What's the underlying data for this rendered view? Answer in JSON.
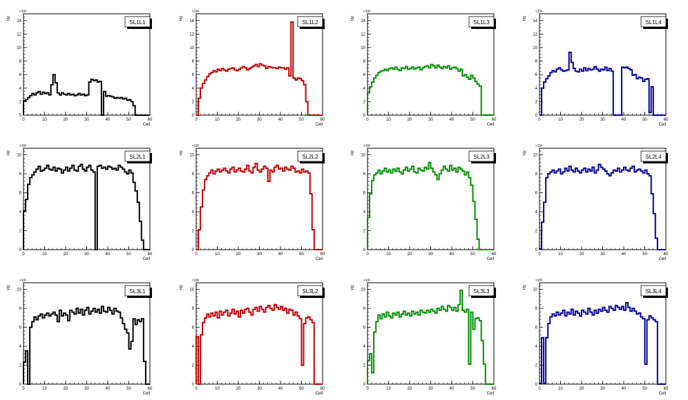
{
  "chart_data": [
    {
      "type": "histogram",
      "title": "SL1L1",
      "xlabel": "Cell",
      "ylabel": "Hz",
      "exponent": "×10²",
      "xlim": [
        0,
        60
      ],
      "ylim": [
        0,
        15
      ],
      "yticks": [
        0,
        2,
        4,
        6,
        8,
        10,
        12,
        14
      ],
      "xticks": [
        0,
        10,
        20,
        30,
        40,
        50,
        60
      ],
      "color": "#000000",
      "values": [
        2.1,
        2.3,
        2.6,
        2.9,
        3.2,
        3.0,
        3.3,
        3.5,
        3.1,
        3.4,
        3.2,
        3.3,
        3.0,
        4.5,
        6.0,
        4.8,
        3.3,
        3.0,
        3.3,
        3.1,
        3.0,
        3.2,
        3.0,
        3.1,
        2.9,
        3.0,
        3.2,
        3.0,
        3.1,
        2.9,
        3.0,
        4.9,
        5.3,
        5.1,
        5.2,
        4.9,
        5.0,
        0.0,
        3.5,
        2.8,
        2.9,
        2.8,
        2.7,
        2.5,
        2.6,
        2.5,
        2.6,
        2.4,
        2.5,
        2.2,
        2.3,
        2.0,
        1.4,
        0.0,
        0.0,
        0.0,
        0.0,
        0.0,
        0.0,
        0.0
      ]
    },
    {
      "type": "histogram",
      "title": "SL1L2",
      "xlabel": "Cell",
      "ylabel": "Hz",
      "exponent": "×10²",
      "xlim": [
        0,
        60
      ],
      "ylim": [
        0,
        15
      ],
      "yticks": [
        0,
        2,
        4,
        6,
        8,
        10,
        12,
        14
      ],
      "xticks": [
        0,
        10,
        20,
        30,
        40,
        50,
        60
      ],
      "color": "#c00000",
      "values": [
        0.0,
        2.5,
        4.0,
        4.7,
        5.2,
        5.7,
        6.1,
        6.3,
        6.6,
        6.4,
        6.8,
        6.6,
        6.9,
        6.7,
        6.5,
        6.8,
        6.9,
        7.0,
        6.7,
        6.6,
        6.8,
        7.0,
        7.2,
        7.0,
        6.7,
        6.9,
        7.1,
        7.3,
        7.5,
        7.2,
        7.6,
        7.4,
        7.3,
        6.9,
        7.2,
        7.1,
        7.0,
        7.0,
        6.9,
        7.1,
        7.0,
        7.0,
        6.8,
        7.0,
        5.8,
        13.8,
        5.5,
        5.2,
        5.5,
        5.4,
        5.1,
        4.5,
        2.0,
        0.0,
        0.0,
        0.0,
        0.0,
        0.0,
        0.0,
        0.0
      ]
    },
    {
      "type": "histogram",
      "title": "SL1L3",
      "xlabel": "Cell",
      "ylabel": "Hz",
      "exponent": "×10²",
      "xlim": [
        0,
        60
      ],
      "ylim": [
        0,
        15
      ],
      "yticks": [
        0,
        2,
        4,
        6,
        8,
        10,
        12,
        14
      ],
      "xticks": [
        0,
        10,
        20,
        30,
        40,
        50,
        60
      ],
      "color": "#009000",
      "values": [
        3.3,
        4.2,
        4.9,
        5.5,
        5.9,
        6.3,
        6.5,
        6.6,
        6.8,
        6.6,
        6.9,
        7.0,
        6.8,
        7.1,
        6.8,
        6.6,
        7.0,
        6.9,
        7.2,
        6.8,
        6.9,
        7.1,
        6.8,
        7.0,
        7.1,
        6.7,
        7.0,
        7.2,
        7.3,
        7.0,
        7.5,
        7.3,
        7.0,
        7.4,
        7.1,
        6.9,
        7.2,
        7.0,
        7.3,
        6.8,
        7.0,
        7.1,
        6.9,
        6.5,
        6.8,
        5.8,
        6.0,
        5.6,
        5.3,
        5.9,
        5.5,
        5.0,
        4.6,
        4.3,
        0.0,
        0.0,
        0.0,
        0.0,
        0.0,
        0.0
      ]
    },
    {
      "type": "histogram",
      "title": "SL1L4",
      "xlabel": "Cell",
      "ylabel": "Hz",
      "exponent": "×10²",
      "xlim": [
        0,
        60
      ],
      "ylim": [
        0,
        15
      ],
      "yticks": [
        0,
        2,
        4,
        6,
        8,
        10,
        12,
        14
      ],
      "xticks": [
        0,
        10,
        20,
        30,
        40,
        50,
        60
      ],
      "color": "#00009a",
      "values": [
        0.0,
        4.0,
        4.9,
        5.4,
        5.8,
        6.3,
        6.6,
        6.4,
        6.8,
        7.0,
        6.7,
        6.5,
        6.6,
        6.7,
        9.3,
        7.8,
        6.9,
        6.5,
        6.4,
        6.8,
        6.5,
        7.0,
        6.6,
        6.9,
        6.7,
        6.8,
        7.2,
        6.8,
        6.5,
        6.8,
        6.7,
        7.1,
        6.6,
        6.9,
        6.5,
        0.0,
        0.0,
        0.0,
        0.0,
        7.1,
        7.0,
        7.1,
        6.9,
        6.7,
        5.9,
        6.0,
        5.4,
        5.6,
        5.5,
        5.0,
        5.3,
        5.4,
        0.4,
        4.2,
        0.0,
        0.0,
        0.0,
        0.0,
        0.0,
        0.0
      ]
    },
    {
      "type": "histogram",
      "title": "SL2L1",
      "xlabel": "Cell",
      "ylabel": "Hz",
      "exponent": "×10²",
      "xlim": [
        0,
        60
      ],
      "ylim": [
        0,
        10.7
      ],
      "yticks": [
        0,
        2,
        4,
        6,
        8,
        10
      ],
      "xticks": [
        0,
        10,
        20,
        30,
        40,
        50,
        60
      ],
      "color": "#000000",
      "values": [
        4.1,
        5.3,
        6.9,
        7.6,
        7.9,
        8.2,
        8.5,
        8.8,
        8.3,
        8.4,
        8.6,
        8.9,
        8.5,
        8.4,
        8.7,
        8.3,
        8.6,
        8.5,
        8.1,
        8.4,
        8.7,
        8.3,
        8.6,
        8.9,
        8.4,
        8.3,
        8.8,
        9.0,
        8.5,
        8.3,
        8.7,
        8.9,
        8.4,
        8.2,
        0.0,
        8.8,
        8.9,
        8.6,
        8.7,
        8.5,
        8.8,
        8.7,
        8.5,
        8.6,
        8.4,
        8.9,
        8.7,
        8.5,
        8.2,
        8.0,
        8.4,
        8.1,
        7.1,
        6.2,
        5.0,
        3.0,
        1.0,
        0.0,
        0.0,
        0.0
      ]
    },
    {
      "type": "histogram",
      "title": "SL2L2",
      "xlabel": "Cell",
      "ylabel": "Hz",
      "exponent": "×10²",
      "xlim": [
        0,
        60
      ],
      "ylim": [
        0,
        10.7
      ],
      "yticks": [
        0,
        2,
        4,
        6,
        8,
        10
      ],
      "xticks": [
        0,
        10,
        20,
        30,
        40,
        50,
        60
      ],
      "color": "#c00000",
      "values": [
        0.0,
        2.1,
        4.5,
        6.3,
        7.4,
        7.8,
        8.1,
        8.4,
        8.0,
        8.3,
        8.5,
        8.2,
        8.4,
        8.6,
        8.3,
        8.1,
        8.5,
        8.7,
        8.2,
        8.4,
        8.6,
        8.3,
        8.2,
        8.5,
        8.9,
        8.3,
        8.1,
        8.7,
        9.1,
        8.4,
        8.2,
        8.5,
        8.8,
        8.6,
        7.2,
        8.4,
        8.2,
        8.7,
        8.9,
        8.5,
        8.6,
        8.3,
        8.7,
        8.5,
        8.4,
        8.8,
        8.6,
        8.2,
        8.3,
        8.1,
        8.5,
        8.2,
        8.3,
        8.1,
        5.9,
        2.1,
        0.0,
        0.0,
        0.0,
        0.0
      ]
    },
    {
      "type": "histogram",
      "title": "SL2L3",
      "xlabel": "Cell",
      "ylabel": "Hz",
      "exponent": "×10²",
      "xlim": [
        0,
        60
      ],
      "ylim": [
        0,
        10.7
      ],
      "yticks": [
        0,
        2,
        4,
        6,
        8,
        10
      ],
      "xticks": [
        0,
        10,
        20,
        30,
        40,
        50,
        60
      ],
      "color": "#009000",
      "values": [
        3.4,
        5.9,
        7.3,
        7.9,
        8.1,
        8.4,
        8.0,
        8.3,
        8.6,
        8.2,
        8.4,
        8.1,
        8.5,
        8.3,
        8.6,
        8.2,
        8.0,
        8.4,
        8.7,
        8.3,
        8.5,
        8.8,
        8.2,
        8.1,
        8.6,
        8.4,
        8.3,
        8.7,
        8.5,
        9.2,
        8.6,
        8.2,
        7.9,
        7.4,
        8.0,
        8.4,
        8.8,
        8.5,
        8.3,
        8.9,
        8.4,
        8.6,
        8.2,
        8.7,
        8.5,
        8.3,
        7.9,
        8.2,
        7.6,
        6.8,
        5.1,
        3.2,
        1.1,
        0.0,
        0.0,
        0.0,
        0.0,
        0.0,
        0.0,
        0.0
      ]
    },
    {
      "type": "histogram",
      "title": "SL2L4",
      "xlabel": "Cell",
      "ylabel": "Hz",
      "exponent": "×10²",
      "xlim": [
        0,
        60
      ],
      "ylim": [
        0,
        10.7
      ],
      "yticks": [
        0,
        2,
        4,
        6,
        8,
        10
      ],
      "xticks": [
        0,
        10,
        20,
        30,
        40,
        50,
        60
      ],
      "color": "#00009a",
      "values": [
        0.1,
        2.9,
        5.0,
        7.6,
        8.0,
        8.2,
        8.4,
        8.1,
        8.3,
        8.5,
        8.0,
        8.2,
        8.6,
        8.3,
        8.8,
        8.4,
        8.2,
        8.6,
        8.3,
        8.1,
        8.4,
        8.6,
        8.2,
        8.5,
        8.3,
        8.7,
        8.1,
        8.4,
        9.0,
        8.7,
        8.5,
        8.3,
        8.0,
        7.8,
        8.1,
        8.4,
        8.3,
        8.6,
        8.2,
        8.4,
        8.7,
        8.4,
        8.3,
        8.6,
        8.8,
        8.2,
        8.4,
        8.5,
        8.3,
        8.1,
        8.4,
        8.0,
        7.8,
        5.9,
        3.8,
        1.2,
        0.0,
        0.0,
        0.0,
        0.0
      ]
    },
    {
      "type": "histogram",
      "title": "SL3L1",
      "xlabel": "Cell",
      "ylabel": "Hz",
      "exponent": "×10²",
      "xlim": [
        0,
        60
      ],
      "ylim": [
        0,
        10.7
      ],
      "yticks": [
        0,
        2,
        4,
        6,
        8,
        10
      ],
      "xticks": [
        0,
        10,
        20,
        30,
        40,
        50,
        60
      ],
      "color": "#000000",
      "values": [
        2.3,
        3.5,
        0.0,
        6.0,
        6.6,
        7.1,
        6.8,
        7.2,
        7.4,
        7.0,
        7.3,
        7.5,
        7.2,
        7.4,
        7.6,
        7.3,
        6.6,
        7.8,
        7.2,
        7.5,
        7.3,
        6.7,
        7.8,
        7.6,
        7.4,
        8.0,
        7.5,
        7.9,
        7.3,
        7.8,
        8.1,
        7.4,
        7.7,
        8.0,
        7.6,
        7.9,
        7.5,
        8.2,
        7.7,
        7.6,
        8.1,
        7.8,
        7.4,
        8.0,
        7.7,
        7.6,
        7.0,
        6.4,
        5.8,
        5.4,
        3.7,
        4.5,
        6.9,
        6.3,
        6.8,
        6.6,
        6.9,
        2.4,
        0.0,
        0.0
      ]
    },
    {
      "type": "histogram",
      "title": "SL3L2",
      "xlabel": "Cell",
      "ylabel": "Hz",
      "exponent": "×10²",
      "xlim": [
        0,
        60
      ],
      "ylim": [
        0,
        10.7
      ],
      "yticks": [
        0,
        2,
        4,
        6,
        8,
        10
      ],
      "xticks": [
        0,
        10,
        20,
        30,
        40,
        50,
        60
      ],
      "color": "#c00000",
      "values": [
        5.0,
        0.0,
        5.2,
        6.5,
        7.0,
        7.4,
        7.1,
        7.5,
        7.2,
        7.6,
        7.0,
        7.7,
        7.3,
        7.6,
        7.8,
        7.2,
        7.5,
        7.9,
        7.4,
        7.7,
        7.1,
        7.8,
        7.5,
        7.9,
        8.0,
        7.6,
        7.3,
        7.9,
        8.1,
        7.7,
        8.2,
        7.9,
        7.6,
        8.1,
        8.3,
        8.0,
        7.8,
        8.4,
        8.1,
        7.9,
        8.2,
        7.8,
        8.0,
        7.5,
        7.9,
        7.8,
        7.3,
        7.6,
        7.2,
        6.9,
        2.0,
        6.4,
        7.0,
        7.1,
        6.8,
        6.5,
        0.0,
        0.0,
        0.0,
        0.0
      ]
    },
    {
      "type": "histogram",
      "title": "SL3L3",
      "xlabel": "Cell",
      "ylabel": "Hz",
      "exponent": "×10²",
      "xlim": [
        0,
        60
      ],
      "ylim": [
        0,
        10.7
      ],
      "yticks": [
        0,
        2,
        4,
        6,
        8,
        10
      ],
      "xticks": [
        0,
        10,
        20,
        30,
        40,
        50,
        60
      ],
      "color": "#009000",
      "values": [
        2.5,
        3.2,
        1.2,
        5.5,
        6.6,
        7.3,
        6.9,
        7.4,
        7.1,
        7.6,
        7.2,
        7.0,
        7.5,
        7.3,
        7.6,
        7.1,
        7.4,
        7.7,
        7.3,
        7.5,
        7.2,
        7.7,
        7.4,
        7.6,
        7.3,
        7.8,
        7.6,
        7.5,
        7.8,
        7.6,
        7.9,
        7.7,
        7.5,
        8.0,
        7.8,
        8.2,
        7.9,
        7.7,
        8.3,
        8.1,
        7.8,
        8.1,
        7.7,
        8.4,
        9.9,
        7.8,
        7.6,
        7.9,
        2.1,
        7.6,
        5.8,
        6.9,
        7.0,
        6.7,
        4.6,
        2.1,
        0.0,
        0.0,
        0.0,
        0.0
      ]
    },
    {
      "type": "histogram",
      "title": "SL3L4",
      "xlabel": "Cell",
      "ylabel": "Hz",
      "exponent": "×10²",
      "xlim": [
        0,
        60
      ],
      "ylim": [
        0,
        10.7
      ],
      "yticks": [
        0,
        2,
        4,
        6,
        8,
        10
      ],
      "xticks": [
        0,
        10,
        20,
        30,
        40,
        50,
        60
      ],
      "color": "#00009a",
      "values": [
        0.1,
        4.9,
        0.1,
        4.9,
        6.4,
        7.1,
        7.4,
        7.2,
        7.6,
        7.3,
        7.5,
        7.8,
        7.2,
        7.6,
        7.4,
        7.9,
        7.3,
        7.7,
        7.5,
        7.2,
        7.8,
        7.6,
        7.4,
        8.0,
        7.6,
        7.3,
        7.8,
        7.5,
        7.9,
        7.7,
        8.1,
        7.8,
        7.6,
        8.2,
        8.0,
        7.8,
        8.3,
        8.1,
        7.9,
        8.2,
        7.8,
        8.6,
        8.1,
        7.7,
        8.0,
        7.7,
        7.4,
        7.5,
        7.1,
        6.9,
        2.1,
        6.8,
        7.2,
        7.0,
        6.8,
        6.6,
        0.0,
        0.0,
        0.0,
        0.0
      ]
    }
  ]
}
